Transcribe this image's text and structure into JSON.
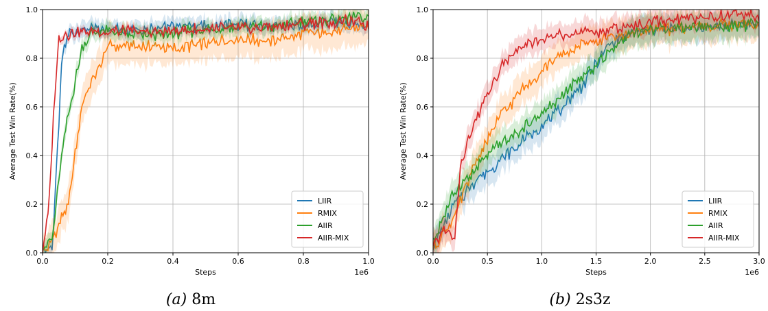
{
  "chart_data": [
    {
      "type": "line",
      "caption_prefix": "(a)",
      "caption_name": "8m",
      "xlabel": "Steps",
      "ylabel": "Average Test Win Rate(%)",
      "x_offset_label": "1e6",
      "xlim": [
        0,
        1.0
      ],
      "ylim": [
        0,
        1.0
      ],
      "xticks": [
        "0.0",
        "0.2",
        "0.4",
        "0.6",
        "0.8",
        "1.0"
      ],
      "xtick_values": [
        0,
        0.2,
        0.4,
        0.6,
        0.8,
        1.0
      ],
      "yticks": [
        "0.0",
        "0.2",
        "0.4",
        "0.6",
        "0.8",
        "1.0"
      ],
      "ytick_values": [
        0,
        0.2,
        0.4,
        0.6,
        0.8,
        1.0
      ],
      "grid": true,
      "legend_position": "bottom-right",
      "series": [
        {
          "name": "LIIR",
          "color": "#1f77b4",
          "band": 0.04,
          "x": [
            0,
            0.03,
            0.045,
            0.06,
            0.08,
            0.1,
            0.15,
            0.2,
            0.3,
            0.4,
            0.5,
            0.6,
            0.7,
            0.8,
            0.9,
            1.0
          ],
          "y": [
            0.0,
            0.02,
            0.4,
            0.8,
            0.9,
            0.91,
            0.92,
            0.92,
            0.92,
            0.93,
            0.93,
            0.94,
            0.93,
            0.94,
            0.95,
            0.93
          ]
        },
        {
          "name": "RMIX",
          "color": "#ff7f0e",
          "band": 0.09,
          "x": [
            0,
            0.03,
            0.06,
            0.08,
            0.1,
            0.12,
            0.14,
            0.17,
            0.2,
            0.3,
            0.4,
            0.5,
            0.6,
            0.7,
            0.8,
            0.9,
            1.0
          ],
          "y": [
            0.0,
            0.05,
            0.15,
            0.2,
            0.4,
            0.6,
            0.68,
            0.75,
            0.85,
            0.85,
            0.84,
            0.86,
            0.88,
            0.87,
            0.9,
            0.91,
            0.93
          ]
        },
        {
          "name": "AIIR",
          "color": "#2ca02c",
          "band": 0.04,
          "x": [
            0,
            0.03,
            0.05,
            0.07,
            0.1,
            0.12,
            0.15,
            0.2,
            0.3,
            0.4,
            0.5,
            0.6,
            0.7,
            0.8,
            0.9,
            1.0
          ],
          "y": [
            0.03,
            0.05,
            0.3,
            0.5,
            0.7,
            0.85,
            0.9,
            0.91,
            0.89,
            0.9,
            0.92,
            0.93,
            0.93,
            0.95,
            0.96,
            0.97
          ]
        },
        {
          "name": "AIIR-MIX",
          "color": "#d62728",
          "band": 0.02,
          "x": [
            0,
            0.02,
            0.035,
            0.05,
            0.07,
            0.1,
            0.2,
            0.3,
            0.4,
            0.5,
            0.6,
            0.7,
            0.8,
            0.9,
            1.0
          ],
          "y": [
            0.0,
            0.2,
            0.6,
            0.88,
            0.9,
            0.91,
            0.91,
            0.91,
            0.91,
            0.92,
            0.92,
            0.93,
            0.94,
            0.95,
            0.94
          ]
        }
      ]
    },
    {
      "type": "line",
      "caption_prefix": "(b)",
      "caption_name": "2s3z",
      "xlabel": "Steps",
      "ylabel": "Average Test Win Rate(%)",
      "x_offset_label": "1e6",
      "xlim": [
        0,
        3.0
      ],
      "ylim": [
        0,
        1.0
      ],
      "xticks": [
        "0.0",
        "0.5",
        "1.0",
        "1.5",
        "2.0",
        "2.5",
        "3.0"
      ],
      "xtick_values": [
        0,
        0.5,
        1.0,
        1.5,
        2.0,
        2.5,
        3.0
      ],
      "yticks": [
        "0.0",
        "0.2",
        "0.4",
        "0.6",
        "0.8",
        "1.0"
      ],
      "ytick_values": [
        0,
        0.2,
        0.4,
        0.6,
        0.8,
        1.0
      ],
      "grid": true,
      "legend_position": "bottom-right",
      "series": [
        {
          "name": "LIIR",
          "color": "#1f77b4",
          "band": 0.07,
          "x": [
            0,
            0.2,
            0.4,
            0.6,
            0.8,
            1.0,
            1.2,
            1.4,
            1.6,
            1.8,
            2.0,
            2.2,
            2.5,
            2.8,
            3.0
          ],
          "y": [
            0.02,
            0.2,
            0.3,
            0.37,
            0.45,
            0.52,
            0.6,
            0.7,
            0.85,
            0.9,
            0.92,
            0.92,
            0.93,
            0.94,
            0.94
          ]
        },
        {
          "name": "RMIX",
          "color": "#ff7f0e",
          "band": 0.08,
          "x": [
            0,
            0.2,
            0.4,
            0.6,
            0.8,
            1.0,
            1.2,
            1.4,
            1.6,
            1.8,
            2.0,
            2.2,
            2.5,
            2.8,
            3.0
          ],
          "y": [
            0.02,
            0.15,
            0.38,
            0.55,
            0.66,
            0.75,
            0.82,
            0.86,
            0.88,
            0.9,
            0.92,
            0.92,
            0.93,
            0.94,
            0.93
          ]
        },
        {
          "name": "AIIR",
          "color": "#2ca02c",
          "band": 0.07,
          "x": [
            0,
            0.2,
            0.4,
            0.6,
            0.8,
            1.0,
            1.2,
            1.4,
            1.6,
            1.8,
            2.0,
            2.2,
            2.5,
            2.8,
            3.0
          ],
          "y": [
            0.05,
            0.25,
            0.35,
            0.44,
            0.5,
            0.57,
            0.65,
            0.73,
            0.82,
            0.9,
            0.92,
            0.93,
            0.93,
            0.93,
            0.95
          ]
        },
        {
          "name": "AIIR-MIX",
          "color": "#d62728",
          "band": 0.06,
          "x": [
            0,
            0.1,
            0.2,
            0.25,
            0.35,
            0.5,
            0.65,
            0.8,
            1.0,
            1.2,
            1.5,
            1.8,
            2.0,
            2.3,
            2.6,
            2.8,
            3.0
          ],
          "y": [
            0.02,
            0.1,
            0.05,
            0.35,
            0.5,
            0.65,
            0.78,
            0.84,
            0.88,
            0.9,
            0.91,
            0.93,
            0.95,
            0.96,
            0.97,
            0.98,
            0.97
          ]
        }
      ]
    }
  ]
}
